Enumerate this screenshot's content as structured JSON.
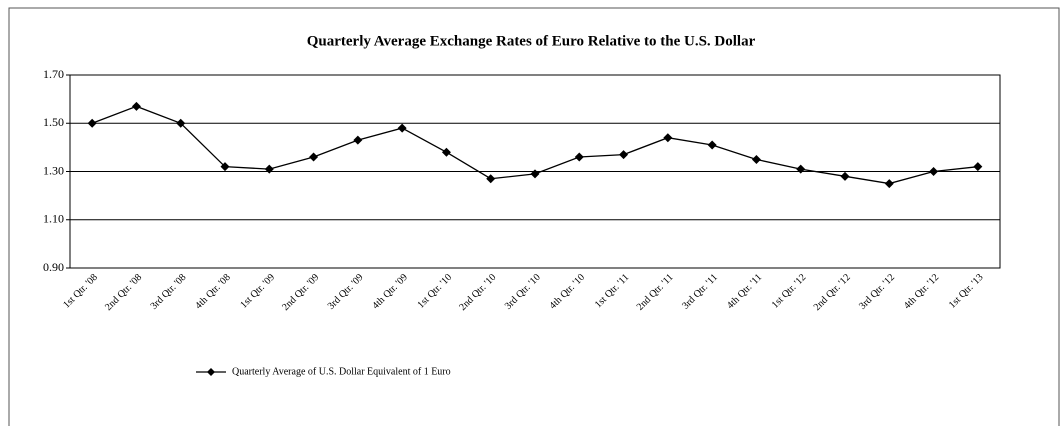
{
  "chart_data": {
    "type": "line",
    "title": "Quarterly  Average Exchange  Rates of Euro  Relative to the U.S.  Dollar",
    "categories": [
      "1st Qtr. '08",
      "2nd Qtr. '08",
      "3rd Qtr. '08",
      "4th Qtr. '08",
      "1st Qtr. '09",
      "2nd Qtr. '09",
      "3rd Qtr. '09",
      "4th Qtr. '09",
      "1st Qtr. '10",
      "2nd Qtr. '10",
      "3rd Qtr. '10",
      "4th Qtr. '10",
      "1st Qtr. '11",
      "2nd Qtr. '11",
      "3rd Qtr. '11",
      "4th Qtr. '11",
      "1st Qtr. '12",
      "2nd Qtr. '12",
      "3rd Qtr. '12",
      "4th Qtr. '12",
      "1st Qtr. '13"
    ],
    "series": [
      {
        "name": "Quarterly Average of U.S. Dollar Equivalent of 1 Euro",
        "color": "#000000",
        "values": [
          1.5,
          1.57,
          1.5,
          1.32,
          1.31,
          1.36,
          1.43,
          1.48,
          1.38,
          1.27,
          1.29,
          1.36,
          1.37,
          1.44,
          1.41,
          1.35,
          1.31,
          1.28,
          1.25,
          1.3,
          1.32
        ]
      }
    ],
    "ylim": [
      0.9,
      1.7
    ],
    "yticks": [
      {
        "value": 0.9,
        "label": "0.90"
      },
      {
        "value": 1.1,
        "label": "1.10"
      },
      {
        "value": 1.3,
        "label": "1.30"
      },
      {
        "value": 1.5,
        "label": "1.50"
      },
      {
        "value": 1.7,
        "label": "1.70"
      }
    ],
    "grid": true
  }
}
